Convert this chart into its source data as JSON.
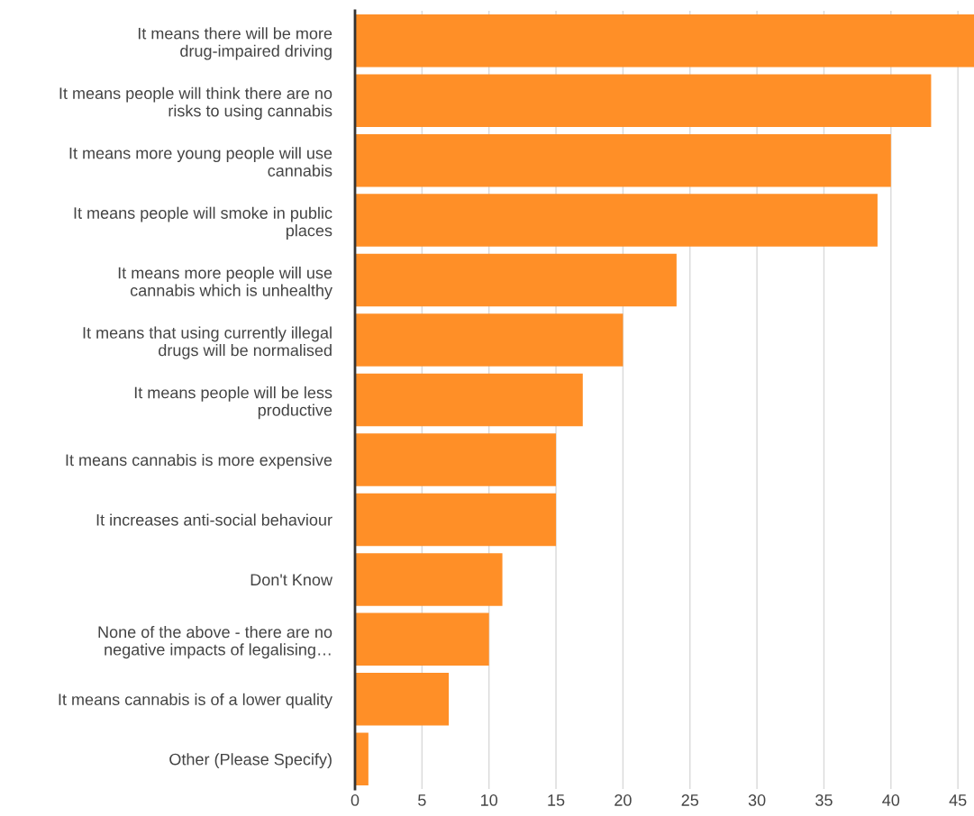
{
  "chart_data": {
    "type": "bar",
    "orientation": "horizontal",
    "color": "#ff8f27",
    "categories": [
      "It means there will be more\ndrug-impaired driving",
      "It means people will think there are no\nrisks to using cannabis",
      "It means more young people will use\ncannabis",
      "It means people will smoke in public\nplaces",
      "It means more people will use\ncannabis which is unhealthy",
      "It means that using currently illegal\ndrugs will be normalised",
      "It means people will be less\nproductive",
      "It means cannabis is more expensive",
      "It increases anti-social behaviour",
      "Don't Know",
      "None of the above - there are no\nnegative impacts of legalising…",
      "It means cannabis is of a lower quality",
      "Other (Please Specify)"
    ],
    "values": [
      46.2,
      43,
      40,
      39,
      24,
      20,
      17,
      15,
      15,
      11,
      10,
      7,
      1
    ],
    "xlim": [
      0,
      46.2
    ],
    "xticks": [
      0,
      5,
      10,
      15,
      20,
      25,
      30,
      35,
      40,
      45
    ],
    "grid": "x"
  }
}
